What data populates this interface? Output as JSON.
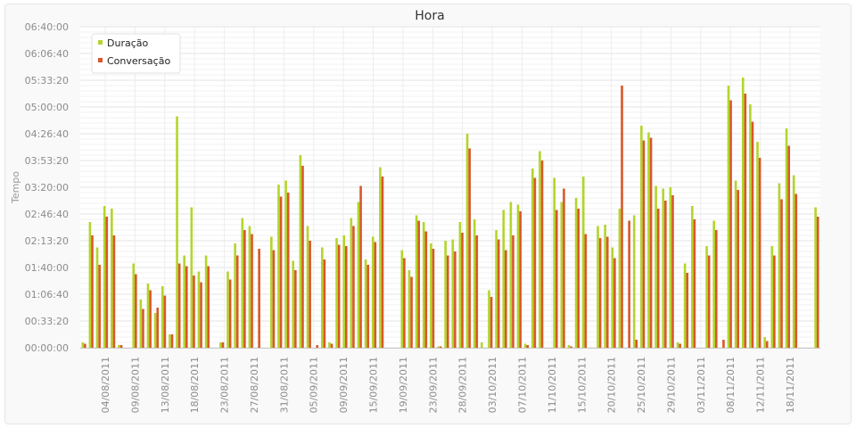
{
  "chart_data": {
    "type": "bar",
    "title": "Hora",
    "ylabel": "Tempo",
    "xlabel": "",
    "y_unit": "seconds",
    "ylim": [
      0,
      24000
    ],
    "y_ticks": [
      "00:00:00",
      "00:33:20",
      "01:06:40",
      "01:40:00",
      "02:13:20",
      "02:46:40",
      "03:20:00",
      "03:53:20",
      "04:26:40",
      "05:00:00",
      "05:33:20",
      "06:06:40",
      "06:40:00"
    ],
    "x_tick_labels": [
      "04/08/2011",
      "09/08/2011",
      "13/08/2011",
      "18/08/2011",
      "23/08/2011",
      "27/08/2011",
      "31/08/2011",
      "05/09/2011",
      "09/09/2011",
      "15/09/2011",
      "19/09/2011",
      "23/09/2011",
      "28/09/2011",
      "03/10/2011",
      "07/10/2011",
      "11/10/2011",
      "15/10/2011",
      "20/10/2011",
      "25/10/2011",
      "29/10/2011",
      "03/11/2011",
      "08/11/2011",
      "12/11/2011",
      "18/11/2011"
    ],
    "legend_position": "top-left",
    "grid": true,
    "colors": {
      "duracao": "#b3d52c",
      "conversacao": "#d8582a"
    },
    "series": [
      {
        "name": "Duração",
        "values": [
          400,
          9400,
          7500,
          10600,
          10400,
          200,
          0,
          6300,
          3600,
          4800,
          2600,
          4600,
          1000,
          17300,
          6900,
          10500,
          5700,
          6900,
          0,
          400,
          5700,
          7800,
          9700,
          9100,
          0,
          0,
          8300,
          12200,
          12500,
          6500,
          14400,
          9100,
          0,
          7500,
          400,
          8200,
          8400,
          9700,
          10900,
          6600,
          8300,
          13500,
          0,
          0,
          7300,
          5800,
          9900,
          9400,
          7800,
          100,
          8000,
          8100,
          9400,
          16000,
          9600,
          400,
          4300,
          8800,
          10300,
          10900,
          10700,
          300,
          13400,
          14700,
          0,
          12700,
          10900,
          200,
          11200,
          12800,
          0,
          9100,
          9200,
          7500,
          10400,
          0,
          9900,
          16600,
          16100,
          12100,
          11900,
          12000,
          400,
          6300,
          10600,
          0,
          7600,
          9500,
          0,
          19600,
          12500,
          20200,
          18200,
          15400,
          800,
          7600,
          12300,
          16400,
          12900,
          0,
          0,
          10500
        ]
      },
      {
        "name": "Conversação",
        "values": [
          300,
          8400,
          6200,
          9800,
          8400,
          200,
          0,
          5500,
          2900,
          4300,
          3000,
          3900,
          1000,
          6300,
          6100,
          5400,
          4900,
          6100,
          0,
          400,
          5100,
          6900,
          8800,
          8500,
          7400,
          0,
          7300,
          11300,
          11600,
          5800,
          13600,
          8000,
          200,
          6600,
          300,
          7700,
          7600,
          9100,
          12100,
          6200,
          7900,
          12800,
          0,
          0,
          6700,
          5300,
          9500,
          8700,
          7400,
          100,
          6900,
          7200,
          8600,
          14900,
          8400,
          0,
          3800,
          8100,
          7300,
          8400,
          10200,
          200,
          12700,
          14000,
          0,
          10300,
          11900,
          100,
          10400,
          8500,
          0,
          8200,
          8300,
          6700,
          19600,
          9500,
          600,
          15500,
          15700,
          10400,
          11000,
          11400,
          300,
          5600,
          9600,
          0,
          6900,
          8800,
          600,
          18500,
          11800,
          19000,
          16900,
          14200,
          500,
          6900,
          11100,
          15100,
          11500,
          0,
          0,
          9800
        ]
      }
    ]
  }
}
